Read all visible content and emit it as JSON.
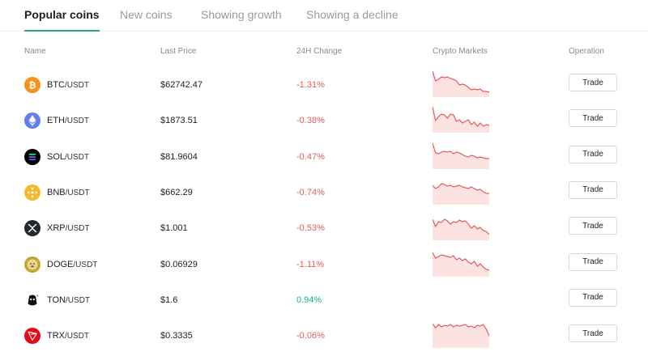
{
  "tabs": [
    {
      "label": "Popular coins",
      "active": true
    },
    {
      "label": "New coins",
      "active": false
    },
    {
      "label": "Showing growth",
      "active": false
    },
    {
      "label": "Showing a decline",
      "active": false
    }
  ],
  "table": {
    "headers": {
      "name": "Name",
      "last_price": "Last Price",
      "change": "24H Change",
      "markets": "Crypto Markets",
      "operation": "Operation"
    },
    "rows": [
      {
        "symbol": "BTC",
        "quote": "/USDT",
        "price": "$62742.47",
        "change": "-1.31%",
        "direction": "down",
        "icon": "btc-icon",
        "color": "#f7931a",
        "trade": "Trade",
        "has_chart": true
      },
      {
        "symbol": "ETH",
        "quote": "/USDT",
        "price": "$1873.51",
        "change": "-0.38%",
        "direction": "down",
        "icon": "eth-icon",
        "color": "#627eea",
        "trade": "Trade",
        "has_chart": true
      },
      {
        "symbol": "SOL",
        "quote": "/USDT",
        "price": "$81.9604",
        "change": "-0.47%",
        "direction": "down",
        "icon": "sol-icon",
        "color": "#000000",
        "trade": "Trade",
        "has_chart": true
      },
      {
        "symbol": "BNB",
        "quote": "/USDT",
        "price": "$662.29",
        "change": "-0.74%",
        "direction": "down",
        "icon": "bnb-icon",
        "color": "#f3ba2f",
        "trade": "Trade",
        "has_chart": true
      },
      {
        "symbol": "XRP",
        "quote": "/USDT",
        "price": "$1.001",
        "change": "-0.53%",
        "direction": "down",
        "icon": "xrp-icon",
        "color": "#23292f",
        "trade": "Trade",
        "has_chart": true
      },
      {
        "symbol": "DOGE",
        "quote": "/USDT",
        "price": "$0.06929",
        "change": "-1.11%",
        "direction": "down",
        "icon": "doge-icon",
        "color": "#c2a633",
        "trade": "Trade",
        "has_chart": true
      },
      {
        "symbol": "TON",
        "quote": "/USDT",
        "price": "$1.6",
        "change": "0.94%",
        "direction": "up",
        "icon": "ton-icon",
        "color": "#111111",
        "trade": "Trade",
        "has_chart": false
      },
      {
        "symbol": "TRX",
        "quote": "/USDT",
        "price": "$0.3335",
        "change": "-0.06%",
        "direction": "down",
        "icon": "trx-icon",
        "color": "#e50914",
        "trade": "Trade",
        "has_chart": true
      }
    ]
  },
  "colors": {
    "accent": "#35a872",
    "negative": "#e45b5b",
    "positive": "#20b26c",
    "sparkline_fill": "#fde2e2"
  }
}
